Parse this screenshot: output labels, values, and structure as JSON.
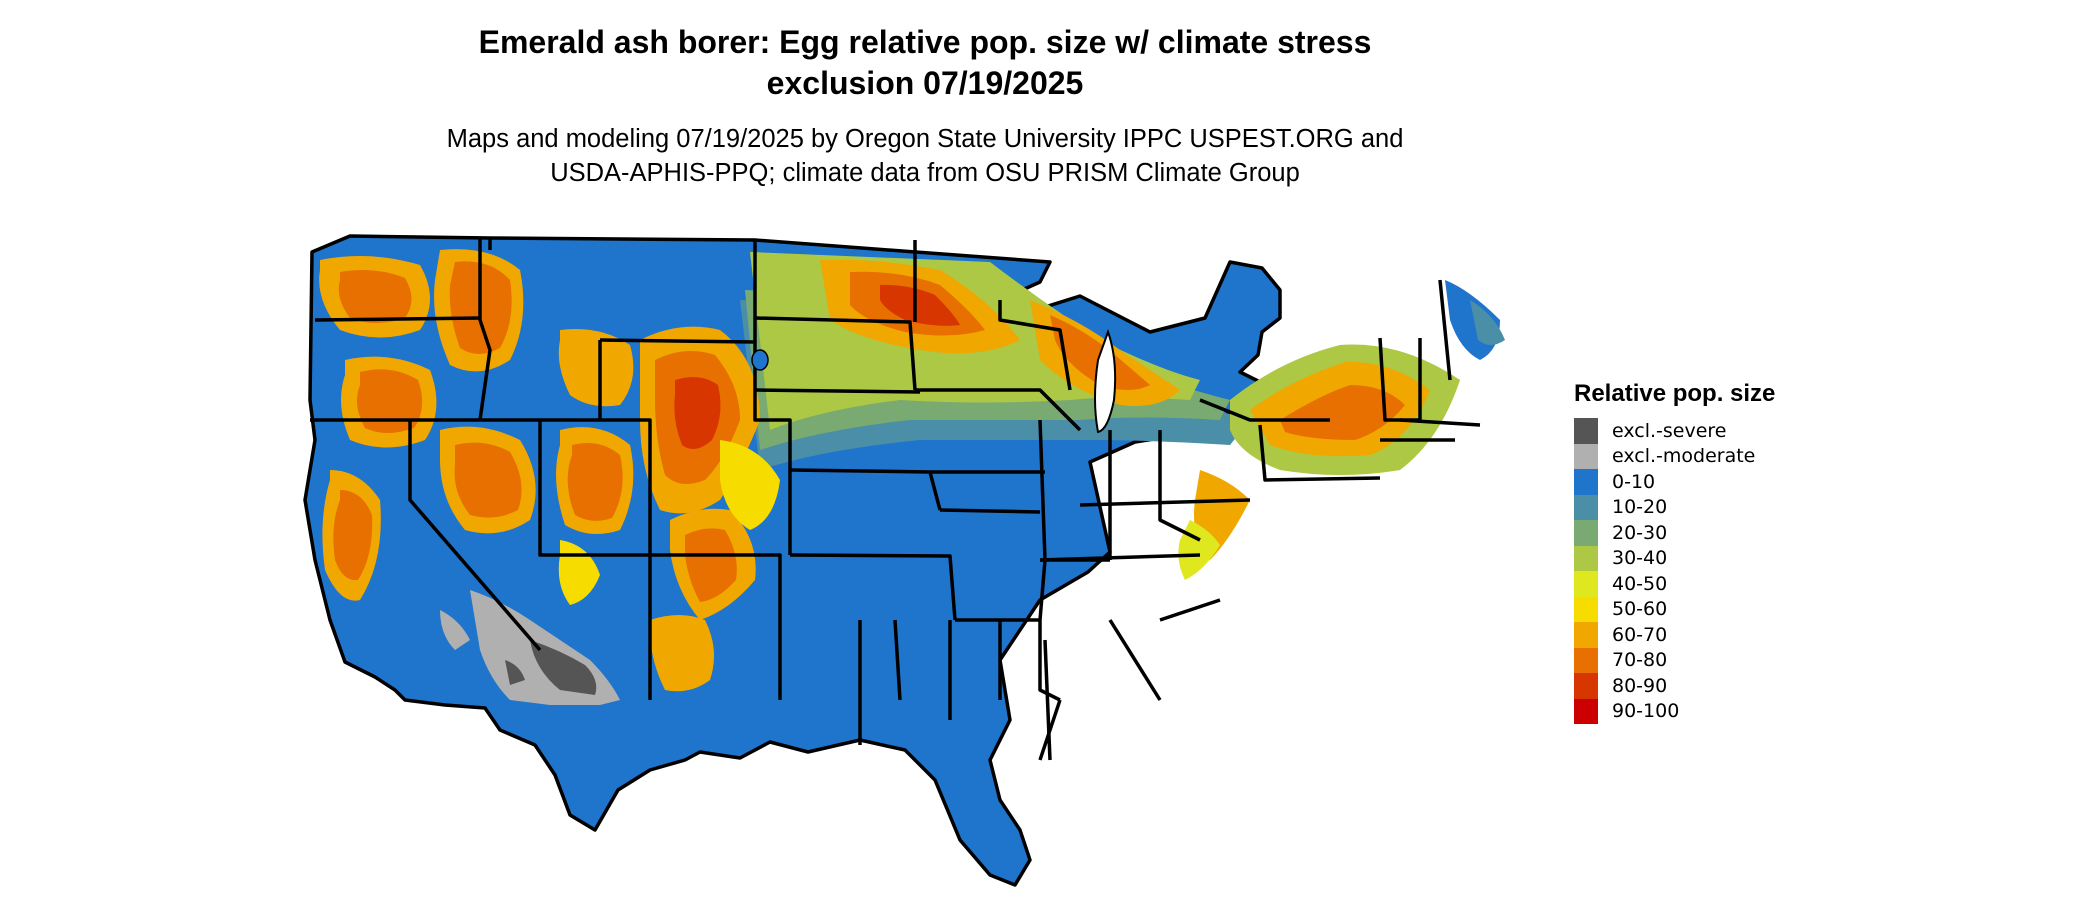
{
  "title_line1": "Emerald ash borer: Egg relative pop. size w/ climate stress",
  "title_line2": "exclusion 07/19/2025",
  "subtitle_line1": "Maps and modeling 07/19/2025 by Oregon State University IPPC USPEST.ORG and",
  "subtitle_line2": "USDA-APHIS-PPQ; climate data from OSU PRISM Climate Group",
  "legend": {
    "title": "Relative pop. size",
    "items": [
      {
        "label": "excl.-severe",
        "color": "#555555"
      },
      {
        "label": "excl.-moderate",
        "color": "#b0b0b0"
      },
      {
        "label": "0-10",
        "color": "#1f74cc"
      },
      {
        "label": "10-20",
        "color": "#4a8ea8"
      },
      {
        "label": "20-30",
        "color": "#78aa72"
      },
      {
        "label": "30-40",
        "color": "#acc845"
      },
      {
        "label": "40-50",
        "color": "#dfe81e"
      },
      {
        "label": "50-60",
        "color": "#f7dc00"
      },
      {
        "label": "60-70",
        "color": "#f0a800"
      },
      {
        "label": "70-80",
        "color": "#e87000"
      },
      {
        "label": "80-90",
        "color": "#d83600"
      },
      {
        "label": "90-100",
        "color": "#cc0000"
      }
    ]
  }
}
